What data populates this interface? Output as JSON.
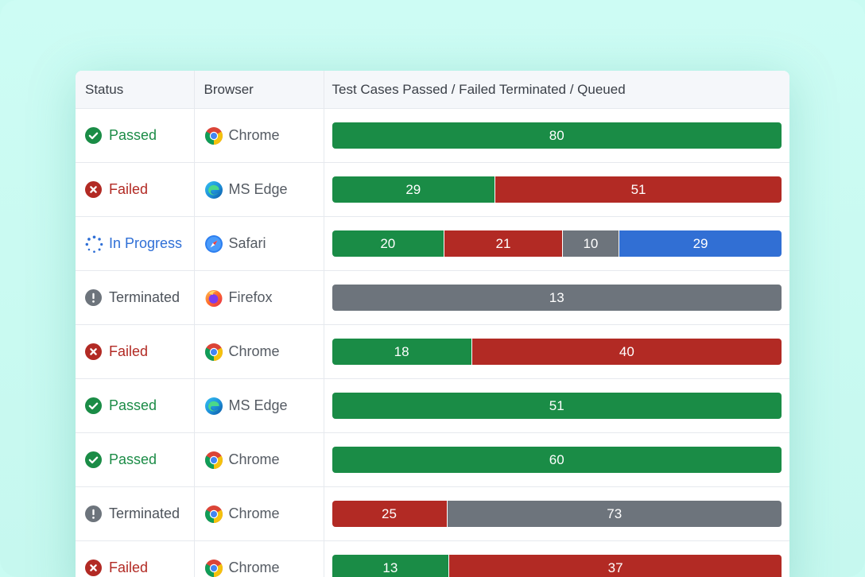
{
  "columns": {
    "status": "Status",
    "browser": "Browser",
    "results": "Test Cases Passed / Failed Terminated / Queued"
  },
  "colors": {
    "passed": "#1a8c46",
    "failed": "#b22a24",
    "terminated": "#6d747c",
    "queued": "#316fd4"
  },
  "rows": [
    {
      "status": "Passed",
      "status_type": "passed",
      "status_icon": "check-circle-icon",
      "browser": "Chrome",
      "browser_icon": "chrome-icon",
      "segments": [
        {
          "type": "passed",
          "value": 80
        }
      ]
    },
    {
      "status": "Failed",
      "status_type": "failed",
      "status_icon": "x-circle-icon",
      "browser": "MS Edge",
      "browser_icon": "edge-icon",
      "segments": [
        {
          "type": "passed",
          "value": 29
        },
        {
          "type": "failed",
          "value": 51
        }
      ]
    },
    {
      "status": "In Progress",
      "status_type": "progress",
      "status_icon": "spinner-icon",
      "browser": "Safari",
      "browser_icon": "safari-icon",
      "segments": [
        {
          "type": "passed",
          "value": 20
        },
        {
          "type": "failed",
          "value": 21
        },
        {
          "type": "terminated",
          "value": 10
        },
        {
          "type": "queued",
          "value": 29
        }
      ]
    },
    {
      "status": "Terminated",
      "status_type": "terminated",
      "status_icon": "exclamation-circle-icon",
      "browser": "Firefox",
      "browser_icon": "firefox-icon",
      "segments": [
        {
          "type": "terminated",
          "value": 13
        }
      ]
    },
    {
      "status": "Failed",
      "status_type": "failed",
      "status_icon": "x-circle-icon",
      "browser": "Chrome",
      "browser_icon": "chrome-icon",
      "segments": [
        {
          "type": "passed",
          "value": 18
        },
        {
          "type": "failed",
          "value": 40
        }
      ]
    },
    {
      "status": "Passed",
      "status_type": "passed",
      "status_icon": "check-circle-icon",
      "browser": "MS Edge",
      "browser_icon": "edge-icon",
      "segments": [
        {
          "type": "passed",
          "value": 51
        }
      ]
    },
    {
      "status": "Passed",
      "status_type": "passed",
      "status_icon": "check-circle-icon",
      "browser": "Chrome",
      "browser_icon": "chrome-icon",
      "segments": [
        {
          "type": "passed",
          "value": 60
        }
      ]
    },
    {
      "status": "Terminated",
      "status_type": "terminated",
      "status_icon": "exclamation-circle-icon",
      "browser": "Chrome",
      "browser_icon": "chrome-icon",
      "segments": [
        {
          "type": "failed",
          "value": 25
        },
        {
          "type": "terminated",
          "value": 73
        }
      ]
    },
    {
      "status": "Failed",
      "status_type": "failed",
      "status_icon": "x-circle-icon",
      "browser": "Chrome",
      "browser_icon": "chrome-icon",
      "segments": [
        {
          "type": "passed",
          "value": 13
        },
        {
          "type": "failed",
          "value": 37
        }
      ]
    }
  ]
}
